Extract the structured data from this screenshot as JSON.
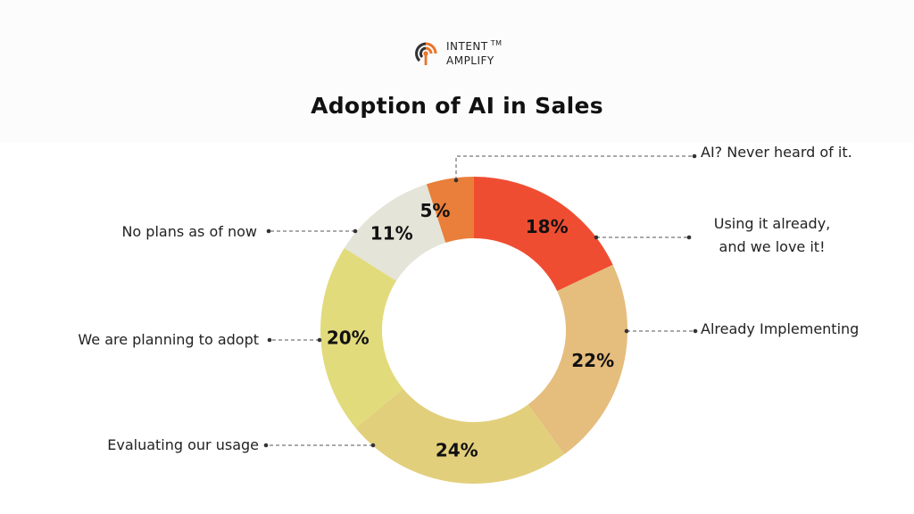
{
  "brand": {
    "line1": "INTENT",
    "line2": "AMPLIFY",
    "tm": "TM"
  },
  "chart_data": {
    "type": "pie",
    "title": "Adoption of AI in Sales",
    "categories": [
      "AI? Never heard of it.",
      "Using it already, and we love it!",
      "Already Implementing",
      "Evaluating our usage",
      "We are planning to adopt",
      "No plans as of now"
    ],
    "values": [
      5,
      18,
      22,
      24,
      20,
      11
    ],
    "data_labels": [
      "5%",
      "18%",
      "22%",
      "24%",
      "20%",
      "11%"
    ],
    "colors": [
      "#e97f3a",
      "#ef4d32",
      "#e5bd7d",
      "#e2cf7c",
      "#e2db7c",
      "#e4e4d8"
    ],
    "donut": true
  }
}
